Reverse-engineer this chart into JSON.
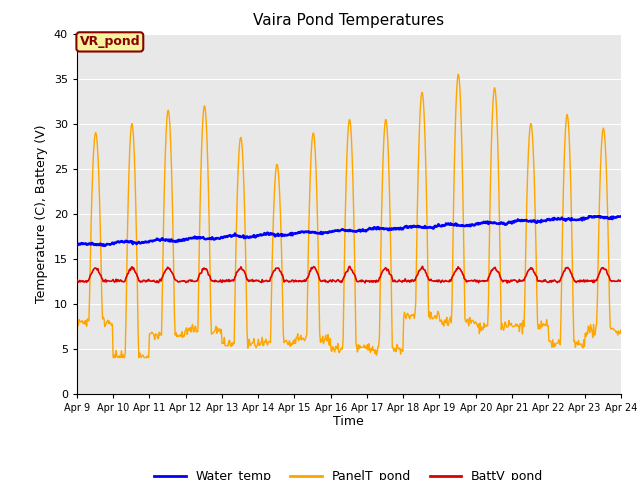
{
  "title": "Vaira Pond Temperatures",
  "xlabel": "Time",
  "ylabel": "Temperature (C), Battery (V)",
  "annotation": "VR_pond",
  "ylim": [
    0,
    40
  ],
  "yticks": [
    0,
    5,
    10,
    15,
    20,
    25,
    30,
    35,
    40
  ],
  "xtick_labels": [
    "Apr 9",
    "Apr 10",
    "Apr 11",
    "Apr 12",
    "Apr 13",
    "Apr 14",
    "Apr 15",
    "Apr 16",
    "Apr 17",
    "Apr 18",
    "Apr 19",
    "Apr 20",
    "Apr 21",
    "Apr 22",
    "Apr 23",
    "Apr 24"
  ],
  "water_color": "#0000ff",
  "panel_color": "#ffa500",
  "batt_color": "#dd0000",
  "bg_color": "#e8e8e8",
  "legend_labels": [
    "Water_temp",
    "PanelT_pond",
    "BattV_pond"
  ],
  "num_days": 15
}
